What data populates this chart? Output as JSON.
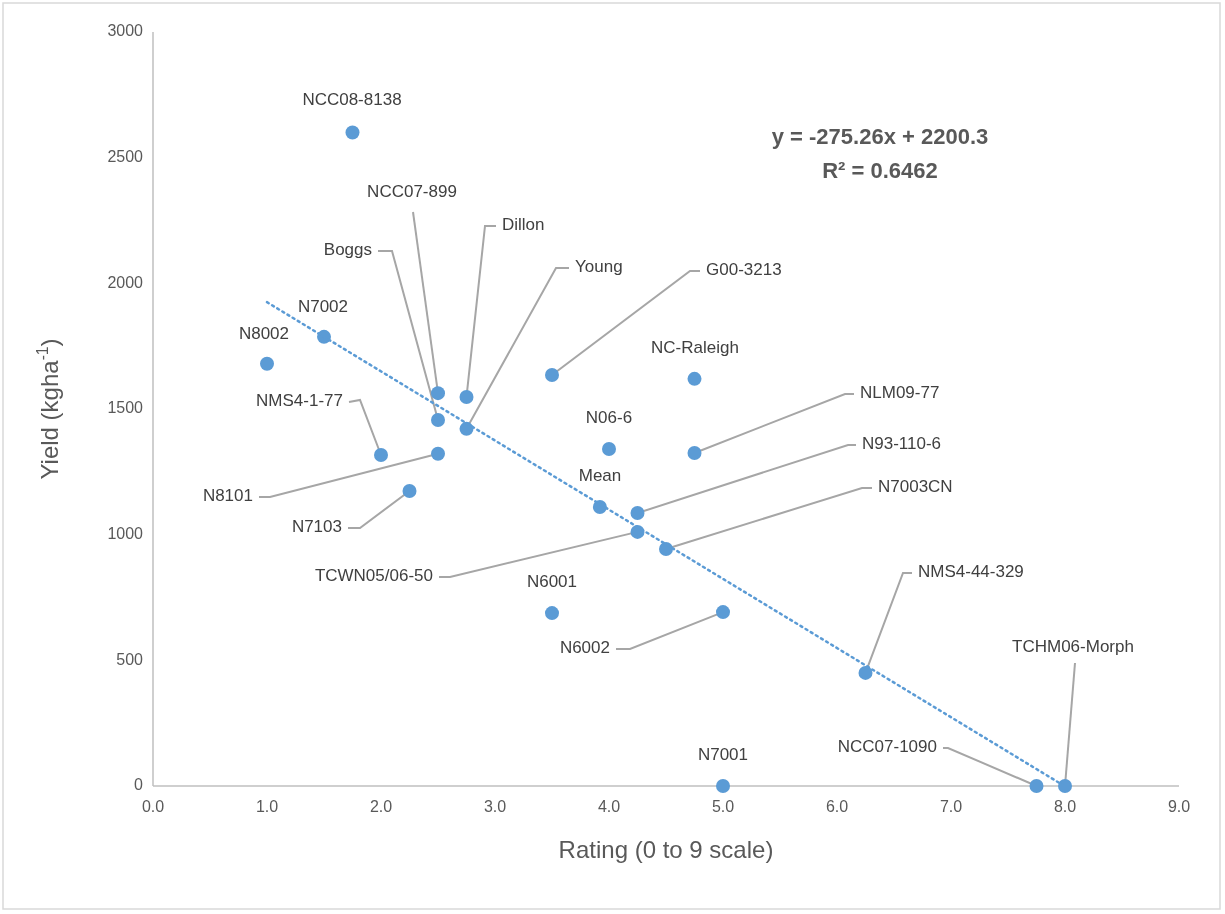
{
  "chart_data": {
    "type": "scatter",
    "xlabel": "Rating (0 to 9 scale)",
    "ylabel": "Yield (kgha$^{-1}$)",
    "xlim": [
      0,
      9
    ],
    "xticks": [
      {
        "value": 0,
        "label": "0.0"
      },
      {
        "value": 1,
        "label": "1.0"
      },
      {
        "value": 2,
        "label": "2.0"
      },
      {
        "value": 3,
        "label": "3.0"
      },
      {
        "value": 4,
        "label": "4.0"
      },
      {
        "value": 5,
        "label": "5.0"
      },
      {
        "value": 6,
        "label": "6.0"
      },
      {
        "value": 7,
        "label": "7.0"
      },
      {
        "value": 8,
        "label": "8.0"
      },
      {
        "value": 9,
        "label": "9.0"
      }
    ],
    "ylim": [
      0,
      3000
    ],
    "yticks": [
      0,
      500,
      1000,
      1500,
      2000,
      2500,
      3000
    ],
    "grid": false,
    "series": [
      {
        "type": "scatter",
        "color": "#5b9bd5",
        "marker": "circle",
        "x": [
          1.75,
          1.0,
          1.5,
          2.0,
          2.5,
          2.5,
          2.5,
          2.75,
          2.75,
          2.25,
          3.5,
          4.75,
          4.0,
          4.75,
          3.92,
          4.25,
          4.25,
          4.5,
          3.5,
          5.0,
          6.25,
          5.0,
          7.75,
          8.0
        ],
        "values": [
          2600,
          1680,
          1787,
          1317,
          1563,
          1456,
          1322,
          1548,
          1421,
          1174,
          1635,
          1620,
          1341,
          1325,
          1110,
          1086,
          1011,
          943,
          688,
          692,
          450,
          0,
          0,
          0
        ]
      },
      {
        "type": "line",
        "color": "#5b9bd5",
        "marker": "none",
        "line_style": "dotted",
        "x": [
          1.0,
          7.98
        ],
        "values": [
          1925,
          4
        ]
      }
    ],
    "annotations": [
      {
        "text": "NCC08-8138",
        "x": 1.75,
        "y": 2600
      },
      {
        "text": "N8002",
        "x": 1.0,
        "y": 1680
      },
      {
        "text": "N7002",
        "x": 1.5,
        "y": 1787
      },
      {
        "text": "NMS4-1-77",
        "x": 2.0,
        "y": 1317
      },
      {
        "text": "NCC07-899",
        "x": 2.5,
        "y": 1563
      },
      {
        "text": "Boggs",
        "x": 2.5,
        "y": 1456
      },
      {
        "text": "N8101",
        "x": 2.5,
        "y": 1322
      },
      {
        "text": "Dillon",
        "x": 2.75,
        "y": 1548
      },
      {
        "text": "Young",
        "x": 2.75,
        "y": 1421
      },
      {
        "text": "N7103",
        "x": 2.25,
        "y": 1174
      },
      {
        "text": "G00-3213",
        "x": 3.5,
        "y": 1635
      },
      {
        "text": "NC-Raleigh",
        "x": 4.75,
        "y": 1620
      },
      {
        "text": "N06-6",
        "x": 4.0,
        "y": 1341
      },
      {
        "text": "NLM09-77",
        "x": 4.75,
        "y": 1325
      },
      {
        "text": "Mean",
        "x": 3.92,
        "y": 1110
      },
      {
        "text": "N93-110-6",
        "x": 4.25,
        "y": 1086
      },
      {
        "text": "TCWN05/06-50",
        "x": 4.25,
        "y": 1011
      },
      {
        "text": "N7003CN",
        "x": 4.5,
        "y": 943
      },
      {
        "text": "N6001",
        "x": 3.5,
        "y": 688
      },
      {
        "text": "N6002",
        "x": 5.0,
        "y": 692
      },
      {
        "text": "NMS4-44-329",
        "x": 6.25,
        "y": 450
      },
      {
        "text": "N7001",
        "x": 5.0,
        "y": 0
      },
      {
        "text": "NCC07-1090",
        "x": 7.75,
        "y": 0
      },
      {
        "text": "TCHM06-Morph",
        "x": 8.0,
        "y": 0
      },
      "y = -275.26x + 2200.3",
      "R² = 0.6462"
    ]
  }
}
